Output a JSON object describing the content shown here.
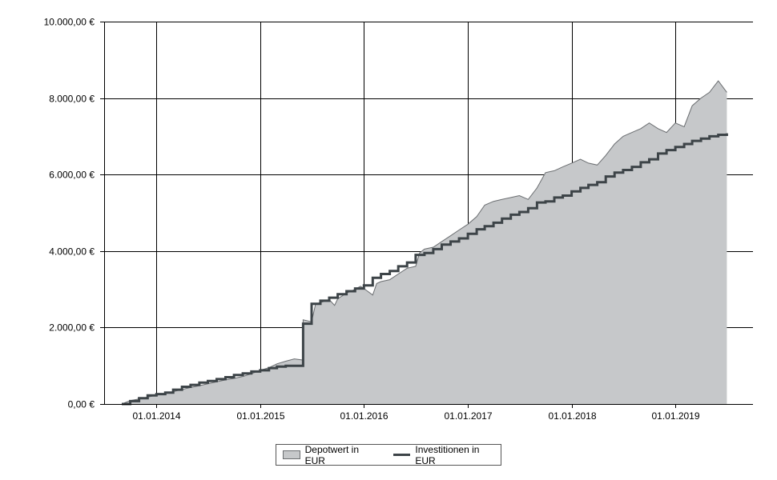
{
  "chart_data": {
    "type": "area",
    "y_tick_labels": [
      "0,00 €",
      "2.000,00 €",
      "4.000,00 €",
      "6.000,00 €",
      "8.000,00 €",
      "10.000,00 €"
    ],
    "y_ticks": [
      0,
      2000,
      4000,
      6000,
      8000,
      10000
    ],
    "ylim": [
      0,
      10000
    ],
    "x_tick_labels": [
      "01.01.2014",
      "01.01.2015",
      "01.01.2016",
      "01.01.2017",
      "01.01.2018",
      "01.01.2019"
    ],
    "x_ticks": [
      "2014-01-01",
      "2015-01-01",
      "2016-01-01",
      "2017-01-01",
      "2018-01-01",
      "2019-01-01"
    ],
    "xlim": [
      "2013-07-01",
      "2019-10-01"
    ],
    "grid": true,
    "legend_position": "bottom-center",
    "series": [
      {
        "name": "Depotwert in EUR",
        "type": "area",
        "color": "#c6c8ca",
        "edge_color": "#6a6d70",
        "points": [
          [
            "2013-09-01",
            0
          ],
          [
            "2013-10-01",
            90
          ],
          [
            "2013-11-01",
            130
          ],
          [
            "2013-12-01",
            180
          ],
          [
            "2014-01-01",
            230
          ],
          [
            "2014-02-01",
            270
          ],
          [
            "2014-03-01",
            320
          ],
          [
            "2014-04-01",
            380
          ],
          [
            "2014-05-01",
            430
          ],
          [
            "2014-06-01",
            480
          ],
          [
            "2014-07-01",
            530
          ],
          [
            "2014-08-01",
            580
          ],
          [
            "2014-09-01",
            630
          ],
          [
            "2014-10-01",
            670
          ],
          [
            "2014-11-01",
            720
          ],
          [
            "2014-12-01",
            790
          ],
          [
            "2015-01-01",
            880
          ],
          [
            "2015-02-01",
            950
          ],
          [
            "2015-03-01",
            1050
          ],
          [
            "2015-04-01",
            1120
          ],
          [
            "2015-05-01",
            1180
          ],
          [
            "2015-05-31",
            1150
          ],
          [
            "2015-06-01",
            2200
          ],
          [
            "2015-07-01",
            2150
          ],
          [
            "2015-07-15",
            2620
          ],
          [
            "2015-08-01",
            2650
          ],
          [
            "2015-09-01",
            2730
          ],
          [
            "2015-09-20",
            2580
          ],
          [
            "2015-10-01",
            2750
          ],
          [
            "2015-11-01",
            2900
          ],
          [
            "2015-12-01",
            3000
          ],
          [
            "2015-12-20",
            3080
          ],
          [
            "2016-01-01",
            3020
          ],
          [
            "2016-02-01",
            2850
          ],
          [
            "2016-02-15",
            3150
          ],
          [
            "2016-03-01",
            3200
          ],
          [
            "2016-04-01",
            3250
          ],
          [
            "2016-05-01",
            3400
          ],
          [
            "2016-06-01",
            3550
          ],
          [
            "2016-07-01",
            3600
          ],
          [
            "2016-07-15",
            3950
          ],
          [
            "2016-08-01",
            4050
          ],
          [
            "2016-09-01",
            4100
          ],
          [
            "2016-10-01",
            4250
          ],
          [
            "2016-11-01",
            4400
          ],
          [
            "2016-12-01",
            4550
          ],
          [
            "2017-01-01",
            4700
          ],
          [
            "2017-02-01",
            4900
          ],
          [
            "2017-03-01",
            5200
          ],
          [
            "2017-04-01",
            5300
          ],
          [
            "2017-05-01",
            5350
          ],
          [
            "2017-06-01",
            5400
          ],
          [
            "2017-07-01",
            5450
          ],
          [
            "2017-08-01",
            5350
          ],
          [
            "2017-09-01",
            5650
          ],
          [
            "2017-10-01",
            6050
          ],
          [
            "2017-11-01",
            6100
          ],
          [
            "2017-12-01",
            6200
          ],
          [
            "2018-01-01",
            6300
          ],
          [
            "2018-02-01",
            6400
          ],
          [
            "2018-03-01",
            6300
          ],
          [
            "2018-04-01",
            6250
          ],
          [
            "2018-05-01",
            6500
          ],
          [
            "2018-06-01",
            6800
          ],
          [
            "2018-07-01",
            7000
          ],
          [
            "2018-08-01",
            7100
          ],
          [
            "2018-09-01",
            7200
          ],
          [
            "2018-10-01",
            7350
          ],
          [
            "2018-11-01",
            7200
          ],
          [
            "2018-12-01",
            7100
          ],
          [
            "2019-01-01",
            7350
          ],
          [
            "2019-02-01",
            7250
          ],
          [
            "2019-03-01",
            7800
          ],
          [
            "2019-04-01",
            8000
          ],
          [
            "2019-05-01",
            8150
          ],
          [
            "2019-06-01",
            8450
          ],
          [
            "2019-07-01",
            8150
          ]
        ]
      },
      {
        "name": "Investitionen in EUR",
        "type": "step-line",
        "color": "#3d4448",
        "points": [
          [
            "2013-09-01",
            0
          ],
          [
            "2013-10-01",
            75
          ],
          [
            "2013-11-01",
            150
          ],
          [
            "2013-12-01",
            225
          ],
          [
            "2014-01-01",
            260
          ],
          [
            "2014-02-01",
            300
          ],
          [
            "2014-03-01",
            375
          ],
          [
            "2014-04-01",
            450
          ],
          [
            "2014-05-01",
            500
          ],
          [
            "2014-06-01",
            560
          ],
          [
            "2014-07-01",
            600
          ],
          [
            "2014-08-01",
            650
          ],
          [
            "2014-09-01",
            700
          ],
          [
            "2014-10-01",
            760
          ],
          [
            "2014-11-01",
            800
          ],
          [
            "2014-12-01",
            850
          ],
          [
            "2015-01-01",
            880
          ],
          [
            "2015-02-01",
            940
          ],
          [
            "2015-03-01",
            980
          ],
          [
            "2015-04-01",
            1000
          ],
          [
            "2015-06-01",
            2100
          ],
          [
            "2015-07-01",
            2620
          ],
          [
            "2015-08-01",
            2700
          ],
          [
            "2015-09-01",
            2780
          ],
          [
            "2015-10-01",
            2870
          ],
          [
            "2015-11-01",
            2950
          ],
          [
            "2015-12-01",
            3020
          ],
          [
            "2016-01-01",
            3100
          ],
          [
            "2016-02-01",
            3300
          ],
          [
            "2016-03-01",
            3400
          ],
          [
            "2016-04-01",
            3480
          ],
          [
            "2016-05-01",
            3600
          ],
          [
            "2016-06-01",
            3700
          ],
          [
            "2016-07-01",
            3900
          ],
          [
            "2016-08-01",
            3950
          ],
          [
            "2016-09-01",
            4050
          ],
          [
            "2016-10-01",
            4170
          ],
          [
            "2016-11-01",
            4250
          ],
          [
            "2016-12-01",
            4330
          ],
          [
            "2017-01-01",
            4450
          ],
          [
            "2017-02-01",
            4570
          ],
          [
            "2017-03-01",
            4650
          ],
          [
            "2017-04-01",
            4740
          ],
          [
            "2017-05-01",
            4850
          ],
          [
            "2017-06-01",
            4950
          ],
          [
            "2017-07-01",
            5020
          ],
          [
            "2017-08-01",
            5120
          ],
          [
            "2017-09-01",
            5270
          ],
          [
            "2017-10-01",
            5300
          ],
          [
            "2017-11-01",
            5400
          ],
          [
            "2017-12-01",
            5450
          ],
          [
            "2018-01-01",
            5560
          ],
          [
            "2018-02-01",
            5650
          ],
          [
            "2018-03-01",
            5730
          ],
          [
            "2018-04-01",
            5800
          ],
          [
            "2018-05-01",
            5950
          ],
          [
            "2018-06-01",
            6050
          ],
          [
            "2018-07-01",
            6120
          ],
          [
            "2018-08-01",
            6200
          ],
          [
            "2018-09-01",
            6320
          ],
          [
            "2018-10-01",
            6400
          ],
          [
            "2018-11-01",
            6550
          ],
          [
            "2018-12-01",
            6640
          ],
          [
            "2019-01-01",
            6720
          ],
          [
            "2019-02-01",
            6800
          ],
          [
            "2019-03-01",
            6880
          ],
          [
            "2019-04-01",
            6940
          ],
          [
            "2019-05-01",
            7000
          ],
          [
            "2019-06-01",
            7040
          ],
          [
            "2019-07-01",
            7080
          ]
        ]
      }
    ]
  }
}
